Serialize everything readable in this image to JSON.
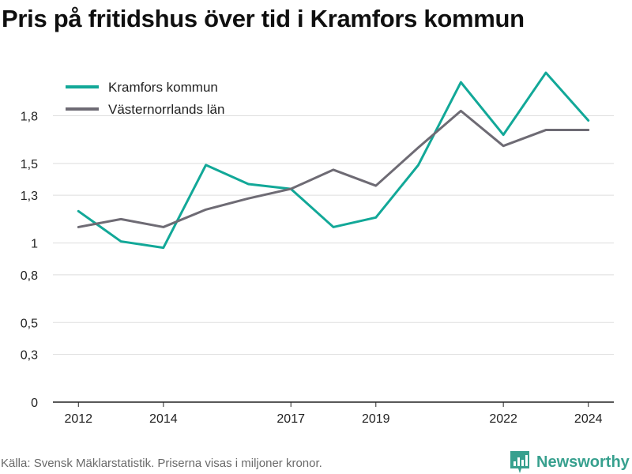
{
  "title": "Pris på fritidshus över tid i Kramfors kommun",
  "footer": "Källa: Svensk Mäklarstatistik. Priserna visas i miljoner kronor.",
  "brand": "Newsworthy",
  "colors": {
    "kramfors": "#12a898",
    "lan": "#6e6b74",
    "grid": "#dddddd",
    "brand": "#37a08e"
  },
  "chart_data": {
    "type": "line",
    "title": "Pris på fritidshus över tid i Kramfors kommun",
    "xlabel": "",
    "ylabel": "",
    "x": [
      2012,
      2013,
      2014,
      2015,
      2016,
      2017,
      2018,
      2019,
      2020,
      2021,
      2022,
      2023,
      2024
    ],
    "xticks": [
      2012,
      2014,
      2017,
      2019,
      2022,
      2024
    ],
    "xtick_labels": [
      "2012",
      "2014",
      "2017",
      "2019",
      "2022",
      "2024"
    ],
    "yticks": [
      0,
      0.3,
      0.5,
      0.8,
      1,
      1.3,
      1.5,
      1.8
    ],
    "ytick_labels": [
      "0",
      "0,3",
      "0,5",
      "0,8",
      "1",
      "1,3",
      "1,5",
      "1,8"
    ],
    "ylim": [
      0,
      2.1
    ],
    "xlim": [
      2011.4,
      2024.6
    ],
    "grid": true,
    "legend": "top-left",
    "series": [
      {
        "name": "Kramfors kommun",
        "values": [
          1.2,
          1.01,
          0.97,
          1.49,
          1.37,
          1.34,
          1.1,
          1.16,
          1.49,
          2.01,
          1.68,
          2.07,
          1.77
        ]
      },
      {
        "name": "Västernorrlands län",
        "values": [
          1.1,
          1.15,
          1.1,
          1.21,
          1.28,
          1.34,
          1.46,
          1.36,
          1.6,
          1.83,
          1.61,
          1.71,
          1.71
        ]
      }
    ]
  }
}
